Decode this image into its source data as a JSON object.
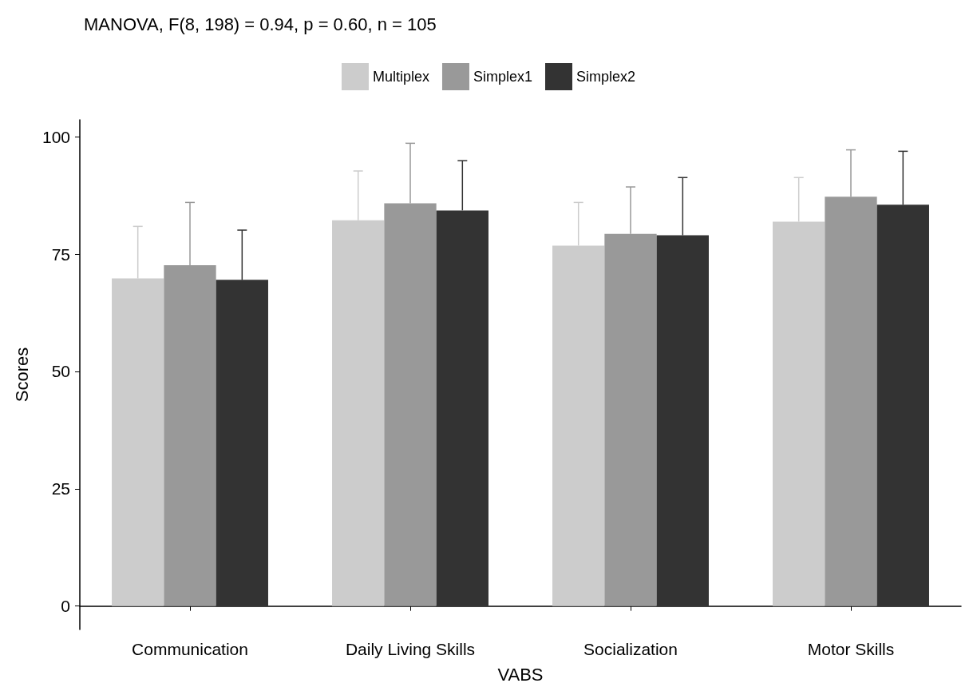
{
  "chart_data": {
    "type": "bar",
    "title": "MANOVA, F(8, 198) = 0.94, p = 0.60, n = 105",
    "xlabel": "VABS",
    "ylabel": "Scores",
    "categories": [
      "Communication",
      "Daily Living Skills",
      "Socialization",
      "Motor Skills"
    ],
    "series": [
      {
        "name": "Multiplex",
        "color": "#cccccc",
        "values": [
          69.8,
          82.2,
          76.8,
          81.9
        ],
        "errors": [
          [
            69.8,
            80.9
          ],
          [
            82.2,
            92.7
          ],
          [
            76.8,
            86.0
          ],
          [
            81.9,
            91.3
          ]
        ]
      },
      {
        "name": "Simplex1",
        "color": "#999999",
        "values": [
          72.6,
          85.8,
          79.3,
          87.2
        ],
        "errors": [
          [
            72.6,
            86.0
          ],
          [
            85.8,
            98.6
          ],
          [
            79.3,
            89.3
          ],
          [
            87.2,
            97.2
          ]
        ]
      },
      {
        "name": "Simplex2",
        "color": "#333333",
        "values": [
          69.5,
          84.3,
          79.0,
          85.5
        ],
        "errors": [
          [
            69.5,
            80.1
          ],
          [
            84.3,
            94.9
          ],
          [
            79.0,
            91.3
          ],
          [
            85.5,
            96.9
          ]
        ]
      }
    ],
    "ylim": [
      -5,
      103.6
    ],
    "yticks": [
      0,
      25,
      50,
      75,
      100
    ],
    "grid": false,
    "legend": "top"
  }
}
